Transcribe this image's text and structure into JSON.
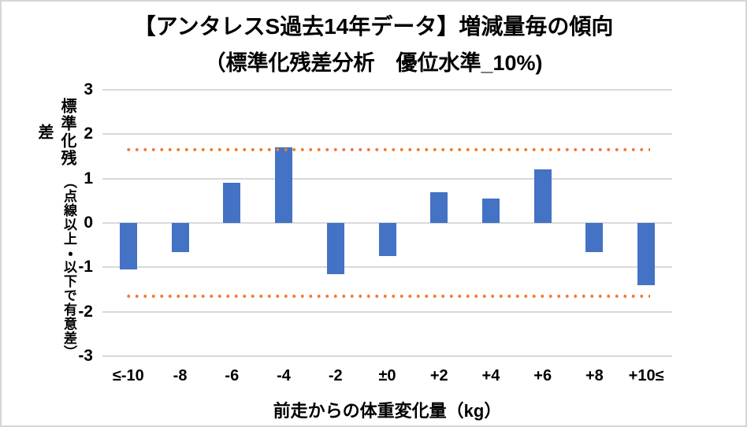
{
  "window": {
    "background": "#ffffff",
    "border_color": "#d6d6d6"
  },
  "title": {
    "line1": "【アンタレスS過去14年データ】増減量毎の傾向",
    "line2": "（標準化残差分析　優位水準_10%)"
  },
  "chart_data": {
    "type": "bar",
    "title": "【アンタレスS過去14年データ】増減量毎の傾向（標準化残差分析　優位水準_10%)",
    "categories": [
      "≤-10",
      "-8",
      "-6",
      "-4",
      "-2",
      "±0",
      "+2",
      "+4",
      "+6",
      "+8",
      "+10≤"
    ],
    "values": [
      -1.05,
      -0.65,
      0.9,
      1.7,
      -1.15,
      -0.75,
      0.7,
      0.55,
      1.2,
      -0.65,
      -1.4
    ],
    "xlabel": "前走からの体重変化量（kg）",
    "ylabel": "標準化残差",
    "ylabel_note": "（点線以上・以下で有意差）",
    "ylim": [
      -3,
      3
    ],
    "yticks": [
      3,
      2,
      1,
      0,
      -1,
      -2,
      -3
    ],
    "grid": true,
    "legend": false,
    "bar_color": "#4472C4",
    "gridline_color": "#D9D9D9",
    "significance_lines": {
      "upper": 1.645,
      "lower": -1.645,
      "color": "#ED7D31",
      "style": "dotted"
    }
  }
}
